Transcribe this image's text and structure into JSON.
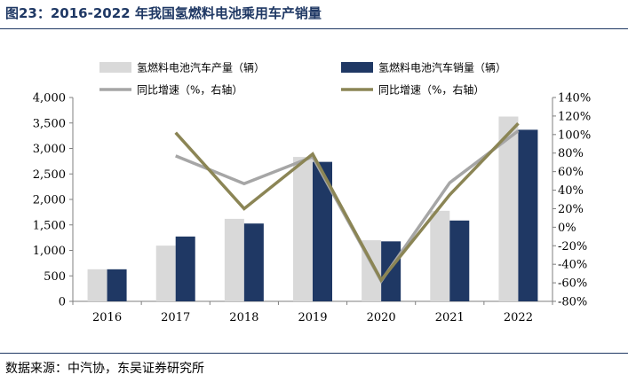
{
  "title": "图23：2016-2022 年我国氢燃料电池乘用车产销量",
  "source": "数据来源：中汽协，东吴证券研究所",
  "colors": {
    "production": "#d9d9d9",
    "sales": "#1f3864",
    "production_growth": "#a6a6a6",
    "sales_growth": "#8b8555",
    "title": "#1f3864"
  },
  "chart_data": {
    "type": "bar",
    "categories": [
      "2016",
      "2017",
      "2018",
      "2019",
      "2020",
      "2021",
      "2022"
    ],
    "series": [
      {
        "name": "氢燃料电池汽车产量（辆）",
        "type": "bar",
        "axis": "left",
        "values": [
          629,
          1093,
          1619,
          2833,
          1199,
          1777,
          3626
        ]
      },
      {
        "name": "氢燃料电池汽车销量（辆）",
        "type": "bar",
        "axis": "left",
        "values": [
          629,
          1272,
          1527,
          2737,
          1177,
          1586,
          3367
        ]
      },
      {
        "name": "同比增速（%，右轴）",
        "type": "line",
        "axis": "right",
        "values": [
          null,
          0.77,
          0.47,
          0.76,
          -0.58,
          0.48,
          1.04
        ]
      },
      {
        "name": "同比增速（%，右轴）",
        "type": "line",
        "axis": "right",
        "values": [
          null,
          1.02,
          0.2,
          0.79,
          -0.57,
          0.35,
          1.12
        ]
      }
    ],
    "y_left": {
      "min": 0,
      "max": 4000,
      "ticks": [
        "0",
        "500",
        "1,000",
        "1,500",
        "2,000",
        "2,500",
        "3,000",
        "3,500",
        "4,000"
      ]
    },
    "y_right": {
      "min": -0.8,
      "max": 1.4,
      "ticks": [
        "-80%",
        "-60%",
        "-40%",
        "-20%",
        "0%",
        "20%",
        "40%",
        "60%",
        "80%",
        "100%",
        "120%",
        "140%"
      ]
    },
    "legend_position": "top",
    "grid": false
  }
}
